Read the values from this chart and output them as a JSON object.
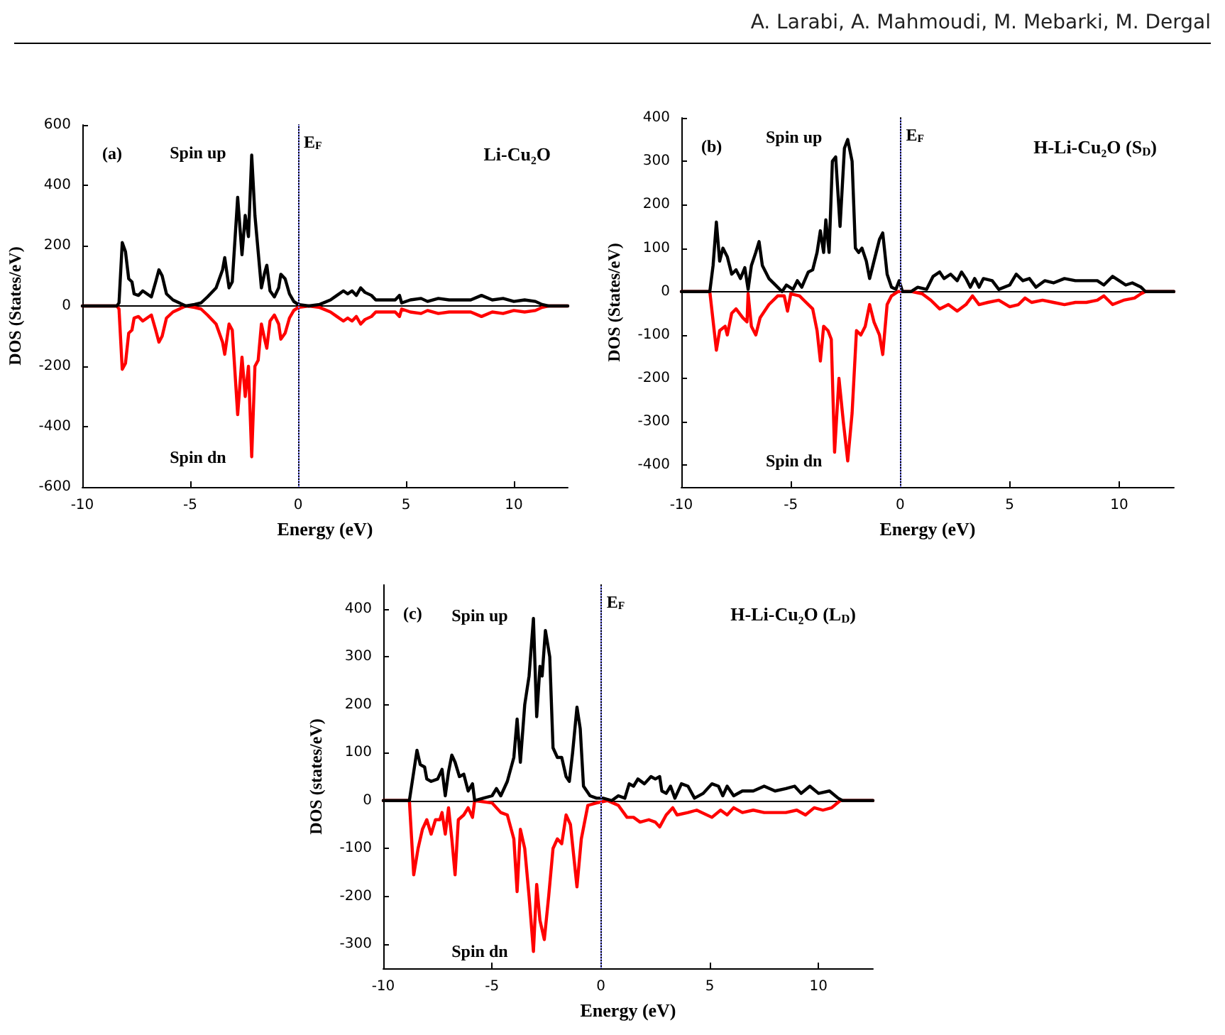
{
  "chart_data": [
    {
      "type": "line",
      "title": "Li-Cu₂O",
      "xlabel": "Energy (eV)",
      "ylabel": "DOS (States/eV)",
      "annotations": [
        "(a)",
        "A. Larabi, A. Mahmoudi, M. Mebarki, M. Dergal"
      ],
      "xlim": [
        -10,
        12.5
      ],
      "xticks": [
        -10,
        -5,
        0,
        5,
        10
      ],
      "ylim": [
        -600,
        600
      ],
      "yticks": [
        -600,
        -400,
        -200,
        0,
        200,
        400,
        600
      ],
      "legend": false,
      "marker": "none",
      "ref_lines": [
        {
          "axis": "x",
          "value": 0,
          "label": "E$_{F}$",
          "color": "#8080ff",
          "line_style": "dotted"
        }
      ],
      "series": [
        {
          "name": "Spin up",
          "color": "#000000",
          "x": [
            -10,
            -8.4,
            -8.3,
            -8.15,
            -8.0,
            -7.85,
            -7.7,
            -7.6,
            -7.4,
            -7.2,
            -7.0,
            -6.8,
            -6.6,
            -6.45,
            -6.3,
            -6.1,
            -5.8,
            -5.5,
            -5.2,
            -4.8,
            -4.5,
            -4.2,
            -3.8,
            -3.5,
            -3.4,
            -3.2,
            -3.05,
            -2.8,
            -2.6,
            -2.45,
            -2.3,
            -2.15,
            -2.0,
            -1.85,
            -1.7,
            -1.55,
            -1.45,
            -1.3,
            -1.1,
            -0.9,
            -0.8,
            -0.6,
            -0.4,
            -0.2,
            0,
            0.5,
            1.0,
            1.5,
            1.8,
            2.1,
            2.3,
            2.5,
            2.7,
            2.9,
            3.1,
            3.4,
            3.6,
            4.0,
            4.5,
            4.7,
            4.8,
            5.2,
            5.7,
            6.0,
            6.5,
            7.0,
            7.5,
            8.0,
            8.5,
            9.0,
            9.5,
            10.0,
            10.5,
            11.0,
            11.3,
            11.6,
            12.5
          ],
          "values": [
            0,
            0,
            10,
            210,
            180,
            90,
            80,
            40,
            35,
            50,
            40,
            30,
            80,
            120,
            100,
            40,
            20,
            10,
            0,
            5,
            10,
            30,
            60,
            120,
            160,
            60,
            80,
            360,
            170,
            300,
            230,
            500,
            300,
            180,
            60,
            110,
            135,
            50,
            30,
            60,
            105,
            90,
            40,
            15,
            5,
            0,
            5,
            20,
            35,
            50,
            40,
            50,
            35,
            60,
            45,
            35,
            20,
            20,
            20,
            35,
            10,
            20,
            25,
            15,
            25,
            20,
            20,
            20,
            35,
            20,
            25,
            15,
            20,
            15,
            5,
            0,
            0
          ]
        },
        {
          "name": "Spin dn",
          "color": "#ff0000",
          "x": [
            -10,
            -8.4,
            -8.3,
            -8.15,
            -8.0,
            -7.85,
            -7.7,
            -7.6,
            -7.4,
            -7.2,
            -7.0,
            -6.8,
            -6.6,
            -6.45,
            -6.3,
            -6.1,
            -5.8,
            -5.5,
            -5.2,
            -4.8,
            -4.5,
            -4.2,
            -3.8,
            -3.5,
            -3.4,
            -3.2,
            -3.05,
            -2.8,
            -2.6,
            -2.45,
            -2.3,
            -2.15,
            -2.0,
            -1.85,
            -1.7,
            -1.55,
            -1.45,
            -1.3,
            -1.1,
            -0.9,
            -0.8,
            -0.6,
            -0.4,
            -0.2,
            0,
            0.5,
            1.0,
            1.5,
            1.8,
            2.1,
            2.3,
            2.5,
            2.7,
            2.9,
            3.1,
            3.4,
            3.6,
            4.0,
            4.5,
            4.7,
            4.8,
            5.2,
            5.7,
            6.0,
            6.5,
            7.0,
            7.5,
            8.0,
            8.5,
            9.0,
            9.5,
            10.0,
            10.5,
            11.0,
            11.3,
            11.6,
            12.5
          ],
          "values": [
            0,
            0,
            -10,
            -210,
            -190,
            -90,
            -80,
            -40,
            -35,
            -50,
            -40,
            -30,
            -80,
            -120,
            -100,
            -40,
            -20,
            -10,
            0,
            -5,
            -10,
            -30,
            -60,
            -120,
            -160,
            -60,
            -80,
            -360,
            -170,
            -300,
            -200,
            -500,
            -200,
            -180,
            -60,
            -110,
            -140,
            -50,
            -30,
            -60,
            -110,
            -90,
            -40,
            -15,
            -5,
            0,
            -5,
            -20,
            -35,
            -50,
            -40,
            -50,
            -35,
            -60,
            -45,
            -35,
            -20,
            -20,
            -20,
            -35,
            -10,
            -20,
            -25,
            -15,
            -25,
            -20,
            -20,
            -20,
            -35,
            -20,
            -25,
            -15,
            -20,
            -15,
            -5,
            0,
            0
          ]
        }
      ]
    },
    {
      "type": "line",
      "title": "H-Li-Cu₂O (S$_{D}$)",
      "xlabel": "Energy (eV)",
      "ylabel": "DOS (States/eV)",
      "annotations": [
        "(b)"
      ],
      "xlim": [
        -10,
        12.5
      ],
      "xticks": [
        -10,
        -5,
        0,
        5,
        10
      ],
      "ylim": [
        -450,
        400
      ],
      "yticks": [
        -400,
        -300,
        -200,
        -100,
        0,
        100,
        200,
        300,
        400
      ],
      "legend": false,
      "marker": "none",
      "ref_lines": [
        {
          "axis": "x",
          "value": 0,
          "label": "E$_{F}$",
          "color": "#8080ff",
          "line_style": "dotted"
        }
      ],
      "series": [
        {
          "name": "Spin up",
          "color": "#000000",
          "x": [
            -10,
            -8.7,
            -8.55,
            -8.4,
            -8.25,
            -8.1,
            -7.9,
            -7.7,
            -7.5,
            -7.3,
            -7.1,
            -6.95,
            -6.8,
            -6.6,
            -6.45,
            -6.3,
            -6.0,
            -5.6,
            -5.4,
            -5.2,
            -4.9,
            -4.7,
            -4.5,
            -4.2,
            -4.0,
            -3.8,
            -3.65,
            -3.5,
            -3.4,
            -3.25,
            -3.1,
            -2.95,
            -2.75,
            -2.55,
            -2.4,
            -2.2,
            -2.05,
            -1.9,
            -1.75,
            -1.55,
            -1.4,
            -1.2,
            -0.95,
            -0.8,
            -0.6,
            -0.4,
            -0.2,
            -0.05,
            0.1,
            0.5,
            0.8,
            1.2,
            1.5,
            1.8,
            2.0,
            2.3,
            2.6,
            2.8,
            3.0,
            3.2,
            3.4,
            3.6,
            3.8,
            4.2,
            4.5,
            5.0,
            5.3,
            5.6,
            5.9,
            6.2,
            6.6,
            7.0,
            7.5,
            8.0,
            8.5,
            9.0,
            9.3,
            9.7,
            10.0,
            10.3,
            10.6,
            11.0,
            11.2,
            12.5
          ],
          "values": [
            0,
            0,
            60,
            160,
            70,
            100,
            80,
            40,
            50,
            30,
            55,
            5,
            60,
            90,
            115,
            60,
            30,
            10,
            0,
            15,
            5,
            25,
            10,
            45,
            50,
            90,
            140,
            90,
            165,
            90,
            300,
            310,
            150,
            330,
            350,
            300,
            100,
            90,
            100,
            70,
            30,
            70,
            120,
            135,
            40,
            10,
            5,
            25,
            0,
            0,
            10,
            5,
            35,
            45,
            30,
            40,
            25,
            45,
            30,
            10,
            30,
            10,
            30,
            25,
            5,
            15,
            40,
            25,
            30,
            10,
            25,
            20,
            30,
            25,
            25,
            25,
            15,
            35,
            25,
            15,
            20,
            10,
            0,
            0
          ]
        },
        {
          "name": "Spin dn",
          "color": "#ff0000",
          "x": [
            -10,
            -8.7,
            -8.4,
            -8.25,
            -8.0,
            -7.9,
            -7.7,
            -7.5,
            -7.2,
            -7.0,
            -6.95,
            -6.8,
            -6.6,
            -6.4,
            -6.0,
            -5.6,
            -5.3,
            -5.15,
            -5.0,
            -4.6,
            -4.4,
            -4.0,
            -3.8,
            -3.65,
            -3.5,
            -3.3,
            -3.15,
            -3.0,
            -2.8,
            -2.6,
            -2.4,
            -2.2,
            -2.0,
            -1.8,
            -1.6,
            -1.4,
            -1.2,
            -0.95,
            -0.8,
            -0.6,
            -0.4,
            -0.1,
            0.5,
            1.0,
            1.4,
            1.8,
            2.2,
            2.6,
            3.0,
            3.3,
            3.6,
            4.0,
            4.5,
            5.0,
            5.4,
            5.7,
            6.0,
            6.5,
            7.0,
            7.5,
            8.0,
            8.5,
            9.0,
            9.3,
            9.7,
            10.2,
            10.7,
            11.0,
            11.2,
            12.5
          ],
          "values": [
            0,
            0,
            -135,
            -90,
            -80,
            -100,
            -50,
            -40,
            -60,
            -70,
            -5,
            -80,
            -100,
            -60,
            -30,
            -10,
            -10,
            -45,
            -5,
            -10,
            -20,
            -40,
            -90,
            -160,
            -80,
            -90,
            -110,
            -370,
            -200,
            -300,
            -390,
            -280,
            -90,
            -100,
            -80,
            -30,
            -70,
            -100,
            -145,
            -30,
            -10,
            0,
            0,
            -5,
            -20,
            -40,
            -30,
            -45,
            -30,
            -10,
            -30,
            -25,
            -20,
            -35,
            -30,
            -15,
            -25,
            -20,
            -25,
            -30,
            -25,
            -25,
            -20,
            -10,
            -30,
            -20,
            -15,
            -5,
            0,
            0
          ]
        }
      ]
    },
    {
      "type": "line",
      "title": "H-Li-Cu₂O (L$_{D}$)",
      "xlabel": "Energy (eV)",
      "ylabel": "DOS (states/eV)",
      "annotations": [
        "(c)"
      ],
      "xlim": [
        -10,
        12.5
      ],
      "xticks": [
        -10,
        -5,
        0,
        5,
        10
      ],
      "ylim": [
        -350,
        450
      ],
      "yticks": [
        -300,
        -200,
        -100,
        0,
        100,
        200,
        300,
        400
      ],
      "legend": false,
      "marker": "none",
      "ref_lines": [
        {
          "axis": "x",
          "value": 0,
          "label": "E$_{F}$",
          "color": "#8080ff",
          "line_style": "dotted"
        }
      ],
      "series": [
        {
          "name": "Spin up",
          "color": "#000000",
          "x": [
            -10,
            -8.8,
            -8.6,
            -8.45,
            -8.3,
            -8.1,
            -8.0,
            -7.8,
            -7.5,
            -7.3,
            -7.15,
            -7.0,
            -6.85,
            -6.7,
            -6.5,
            -6.3,
            -6.1,
            -5.9,
            -5.8,
            -5.4,
            -5.0,
            -4.8,
            -4.6,
            -4.3,
            -4.0,
            -3.85,
            -3.7,
            -3.5,
            -3.3,
            -3.1,
            -2.95,
            -2.8,
            -2.7,
            -2.55,
            -2.35,
            -2.2,
            -2.0,
            -1.8,
            -1.6,
            -1.45,
            -1.3,
            -1.1,
            -0.95,
            -0.8,
            -0.5,
            -0.2,
            0.1,
            0.5,
            0.8,
            1.1,
            1.3,
            1.5,
            1.7,
            2.0,
            2.3,
            2.5,
            2.7,
            2.8,
            3.0,
            3.2,
            3.4,
            3.7,
            4.0,
            4.3,
            4.7,
            5.1,
            5.4,
            5.6,
            5.8,
            6.1,
            6.5,
            7.0,
            7.5,
            8.0,
            8.5,
            8.9,
            9.2,
            9.6,
            10.0,
            10.5,
            10.9,
            11.1,
            12.5
          ],
          "values": [
            0,
            0,
            60,
            105,
            75,
            70,
            45,
            40,
            45,
            65,
            10,
            60,
            95,
            80,
            50,
            55,
            20,
            35,
            0,
            5,
            10,
            25,
            10,
            40,
            90,
            170,
            80,
            200,
            260,
            380,
            175,
            280,
            260,
            355,
            300,
            110,
            90,
            90,
            50,
            40,
            100,
            195,
            150,
            30,
            10,
            5,
            5,
            0,
            10,
            5,
            35,
            30,
            45,
            35,
            50,
            45,
            50,
            20,
            15,
            30,
            5,
            35,
            30,
            5,
            15,
            35,
            30,
            10,
            30,
            10,
            20,
            20,
            30,
            20,
            25,
            30,
            15,
            30,
            15,
            20,
            5,
            0,
            0
          ]
        },
        {
          "name": "Spin dn",
          "color": "#ff0000",
          "x": [
            -10,
            -8.8,
            -8.6,
            -8.4,
            -8.2,
            -8.0,
            -7.8,
            -7.6,
            -7.4,
            -7.3,
            -7.15,
            -7.0,
            -6.85,
            -6.7,
            -6.55,
            -6.3,
            -6.1,
            -5.9,
            -5.8,
            -5.0,
            -4.6,
            -4.3,
            -4.0,
            -3.85,
            -3.7,
            -3.5,
            -3.3,
            -3.1,
            -2.95,
            -2.8,
            -2.6,
            -2.4,
            -2.2,
            -2.0,
            -1.8,
            -1.6,
            -1.4,
            -1.1,
            -0.9,
            -0.6,
            -0.2,
            0.3,
            0.8,
            1.2,
            1.5,
            1.8,
            2.2,
            2.5,
            2.7,
            3.0,
            3.3,
            3.5,
            4.0,
            4.4,
            5.1,
            5.5,
            5.8,
            6.1,
            6.5,
            7.0,
            7.5,
            8.0,
            8.5,
            9.0,
            9.4,
            9.8,
            10.2,
            10.6,
            11.0,
            12.5
          ],
          "values": [
            0,
            0,
            -155,
            -100,
            -60,
            -40,
            -70,
            -40,
            -40,
            -25,
            -70,
            -15,
            -80,
            -155,
            -40,
            -30,
            -15,
            -35,
            0,
            -5,
            -25,
            -30,
            -80,
            -190,
            -60,
            -100,
            -200,
            -315,
            -175,
            -250,
            -290,
            -200,
            -100,
            -80,
            -90,
            -30,
            -50,
            -180,
            -80,
            -10,
            -5,
            0,
            -10,
            -35,
            -35,
            -45,
            -40,
            -45,
            -55,
            -30,
            -15,
            -30,
            -25,
            -20,
            -35,
            -20,
            -30,
            -15,
            -25,
            -20,
            -25,
            -25,
            -25,
            -20,
            -30,
            -15,
            -20,
            -15,
            0,
            0
          ]
        }
      ]
    }
  ]
}
